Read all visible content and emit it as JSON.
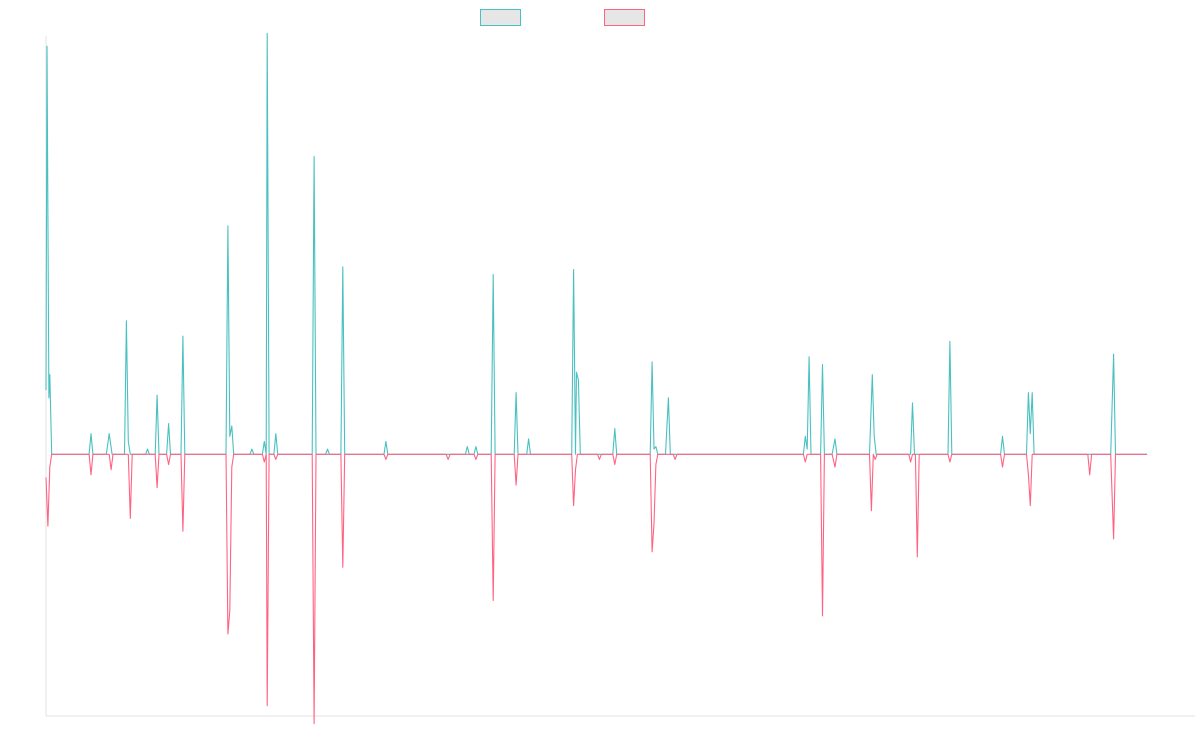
{
  "chart_data": {
    "type": "line",
    "title": "",
    "xlabel": "",
    "ylabel": "",
    "grid": false,
    "legend_position": "top-center",
    "ylim": [
      -1.02,
      1.63
    ],
    "xlim": [
      0,
      1200
    ],
    "series": [
      {
        "legend_color": "#4bc0c0",
        "legend_fill": "#e6e6e6",
        "values": [
          [
            0,
            0.25
          ],
          [
            1,
            1.59
          ],
          [
            3,
            0.22
          ],
          [
            4,
            0.31
          ],
          [
            6,
            0.0
          ],
          [
            45,
            0.0
          ],
          [
            47,
            0.08
          ],
          [
            49,
            0.0
          ],
          [
            63,
            0.0
          ],
          [
            66,
            0.08
          ],
          [
            69,
            0.0
          ],
          [
            82,
            0.0
          ],
          [
            84,
            0.52
          ],
          [
            86,
            0.05
          ],
          [
            88,
            0.0
          ],
          [
            104,
            0.0
          ],
          [
            106,
            0.02
          ],
          [
            108,
            0.0
          ],
          [
            114,
            0.0
          ],
          [
            116,
            0.23
          ],
          [
            118,
            0.0
          ],
          [
            126,
            0.0
          ],
          [
            128,
            0.12
          ],
          [
            130,
            0.0
          ],
          [
            141,
            0.0
          ],
          [
            143,
            0.46
          ],
          [
            145,
            0.0
          ],
          [
            188,
            0.0
          ],
          [
            190,
            0.89
          ],
          [
            192,
            0.07
          ],
          [
            194,
            0.11
          ],
          [
            196,
            0.0
          ],
          [
            213,
            0.0
          ],
          [
            215,
            0.02
          ],
          [
            217,
            0.0
          ],
          [
            226,
            0.0
          ],
          [
            228,
            0.05
          ],
          [
            230,
            0.0
          ],
          [
            231,
            1.64
          ],
          [
            233,
            0.0
          ],
          [
            238,
            0.0
          ],
          [
            240,
            0.08
          ],
          [
            242,
            0.0
          ],
          [
            278,
            0.0
          ],
          [
            280,
            1.16
          ],
          [
            282,
            0.0
          ],
          [
            292,
            0.0
          ],
          [
            294,
            0.02
          ],
          [
            296,
            0.0
          ],
          [
            308,
            0.0
          ],
          [
            310,
            0.73
          ],
          [
            312,
            0.0
          ],
          [
            353,
            0.0
          ],
          [
            355,
            0.05
          ],
          [
            357,
            0.0
          ],
          [
            438,
            0.0
          ],
          [
            440,
            0.03
          ],
          [
            442,
            0.0
          ],
          [
            447,
            0.0
          ],
          [
            449,
            0.03
          ],
          [
            451,
            0.0
          ],
          [
            465,
            0.0
          ],
          [
            467,
            0.7
          ],
          [
            469,
            0.0
          ],
          [
            489,
            0.0
          ],
          [
            491,
            0.24
          ],
          [
            493,
            0.0
          ],
          [
            502,
            0.0
          ],
          [
            504,
            0.06
          ],
          [
            506,
            0.0
          ],
          [
            549,
            0.0
          ],
          [
            551,
            0.72
          ],
          [
            553,
            0.0
          ],
          [
            554,
            0.32
          ],
          [
            556,
            0.29
          ],
          [
            558,
            0.0
          ],
          [
            592,
            0.0
          ],
          [
            594,
            0.1
          ],
          [
            596,
            0.0
          ],
          [
            631,
            0.0
          ],
          [
            633,
            0.36
          ],
          [
            635,
            0.02
          ],
          [
            637,
            0.03
          ],
          [
            639,
            0.0
          ],
          [
            647,
            0.0
          ],
          [
            650,
            0.22
          ],
          [
            652,
            0.0
          ],
          [
            791,
            0.0
          ],
          [
            793,
            0.07
          ],
          [
            795,
            0.02
          ],
          [
            797,
            0.38
          ],
          [
            799,
            0.0
          ],
          [
            809,
            0.0
          ],
          [
            811,
            0.35
          ],
          [
            813,
            0.0
          ],
          [
            821,
            0.0
          ],
          [
            824,
            0.06
          ],
          [
            826,
            0.0
          ],
          [
            860,
            0.0
          ],
          [
            863,
            0.31
          ],
          [
            865,
            0.07
          ],
          [
            867,
            0.0
          ],
          [
            903,
            0.0
          ],
          [
            905,
            0.2
          ],
          [
            907,
            0.0
          ],
          [
            942,
            0.0
          ],
          [
            944,
            0.44
          ],
          [
            946,
            0.0
          ],
          [
            997,
            0.0
          ],
          [
            999,
            0.07
          ],
          [
            1001,
            0.0
          ],
          [
            1024,
            0.0
          ],
          [
            1026,
            0.24
          ],
          [
            1028,
            0.08
          ],
          [
            1030,
            0.24
          ],
          [
            1032,
            0.0
          ],
          [
            1112,
            0.0
          ],
          [
            1115,
            0.39
          ],
          [
            1117,
            0.0
          ],
          [
            1150,
            0.0
          ]
        ]
      },
      {
        "legend_color": "#ff6384",
        "legend_fill": "#e6e6e6",
        "values": [
          [
            0,
            -0.09
          ],
          [
            2,
            -0.28
          ],
          [
            4,
            -0.05
          ],
          [
            6,
            0.0
          ],
          [
            45,
            0.0
          ],
          [
            47,
            -0.08
          ],
          [
            49,
            0.0
          ],
          [
            66,
            0.0
          ],
          [
            68,
            -0.06
          ],
          [
            70,
            0.0
          ],
          [
            86,
            0.0
          ],
          [
            88,
            -0.25
          ],
          [
            90,
            0.0
          ],
          [
            114,
            0.0
          ],
          [
            116,
            -0.13
          ],
          [
            118,
            0.0
          ],
          [
            126,
            0.0
          ],
          [
            128,
            -0.04
          ],
          [
            130,
            0.0
          ],
          [
            141,
            0.0
          ],
          [
            143,
            -0.3
          ],
          [
            145,
            0.0
          ],
          [
            188,
            0.0
          ],
          [
            190,
            -0.7
          ],
          [
            192,
            -0.61
          ],
          [
            194,
            -0.05
          ],
          [
            196,
            0.0
          ],
          [
            226,
            0.0
          ],
          [
            228,
            -0.03
          ],
          [
            230,
            0.0
          ],
          [
            231,
            -0.98
          ],
          [
            233,
            0.0
          ],
          [
            238,
            0.0
          ],
          [
            240,
            -0.02
          ],
          [
            242,
            0.0
          ],
          [
            278,
            0.0
          ],
          [
            280,
            -1.05
          ],
          [
            282,
            0.0
          ],
          [
            308,
            0.0
          ],
          [
            310,
            -0.44
          ],
          [
            312,
            0.0
          ],
          [
            353,
            0.0
          ],
          [
            355,
            -0.02
          ],
          [
            357,
            0.0
          ],
          [
            418,
            0.0
          ],
          [
            420,
            -0.02
          ],
          [
            422,
            0.0
          ],
          [
            447,
            0.0
          ],
          [
            449,
            -0.02
          ],
          [
            451,
            0.0
          ],
          [
            465,
            0.0
          ],
          [
            467,
            -0.57
          ],
          [
            469,
            0.0
          ],
          [
            489,
            0.0
          ],
          [
            491,
            -0.12
          ],
          [
            493,
            0.0
          ],
          [
            549,
            0.0
          ],
          [
            551,
            -0.2
          ],
          [
            553,
            -0.06
          ],
          [
            555,
            0.0
          ],
          [
            576,
            0.0
          ],
          [
            578,
            -0.02
          ],
          [
            580,
            0.0
          ],
          [
            592,
            0.0
          ],
          [
            594,
            -0.04
          ],
          [
            596,
            0.0
          ],
          [
            631,
            0.0
          ],
          [
            633,
            -0.38
          ],
          [
            635,
            -0.27
          ],
          [
            637,
            -0.04
          ],
          [
            639,
            0.0
          ],
          [
            655,
            0.0
          ],
          [
            657,
            -0.02
          ],
          [
            659,
            0.0
          ],
          [
            791,
            0.0
          ],
          [
            793,
            -0.03
          ],
          [
            795,
            0.0
          ],
          [
            809,
            0.0
          ],
          [
            811,
            -0.63
          ],
          [
            813,
            0.0
          ],
          [
            821,
            0.0
          ],
          [
            824,
            -0.05
          ],
          [
            826,
            0.0
          ],
          [
            860,
            0.0
          ],
          [
            862,
            -0.22
          ],
          [
            864,
            0.0
          ],
          [
            866,
            -0.02
          ],
          [
            868,
            0.0
          ],
          [
            901,
            0.0
          ],
          [
            903,
            -0.03
          ],
          [
            905,
            0.0
          ],
          [
            908,
            0.0
          ],
          [
            910,
            -0.4
          ],
          [
            912,
            0.0
          ],
          [
            942,
            0.0
          ],
          [
            944,
            -0.03
          ],
          [
            946,
            0.0
          ],
          [
            997,
            0.0
          ],
          [
            999,
            -0.05
          ],
          [
            1001,
            0.0
          ],
          [
            1024,
            0.0
          ],
          [
            1026,
            -0.08
          ],
          [
            1028,
            -0.2
          ],
          [
            1030,
            0.0
          ],
          [
            1088,
            0.0
          ],
          [
            1090,
            -0.08
          ],
          [
            1092,
            0.0
          ],
          [
            1112,
            0.0
          ],
          [
            1115,
            -0.33
          ],
          [
            1117,
            0.0
          ],
          [
            1150,
            0.0
          ]
        ]
      }
    ]
  }
}
